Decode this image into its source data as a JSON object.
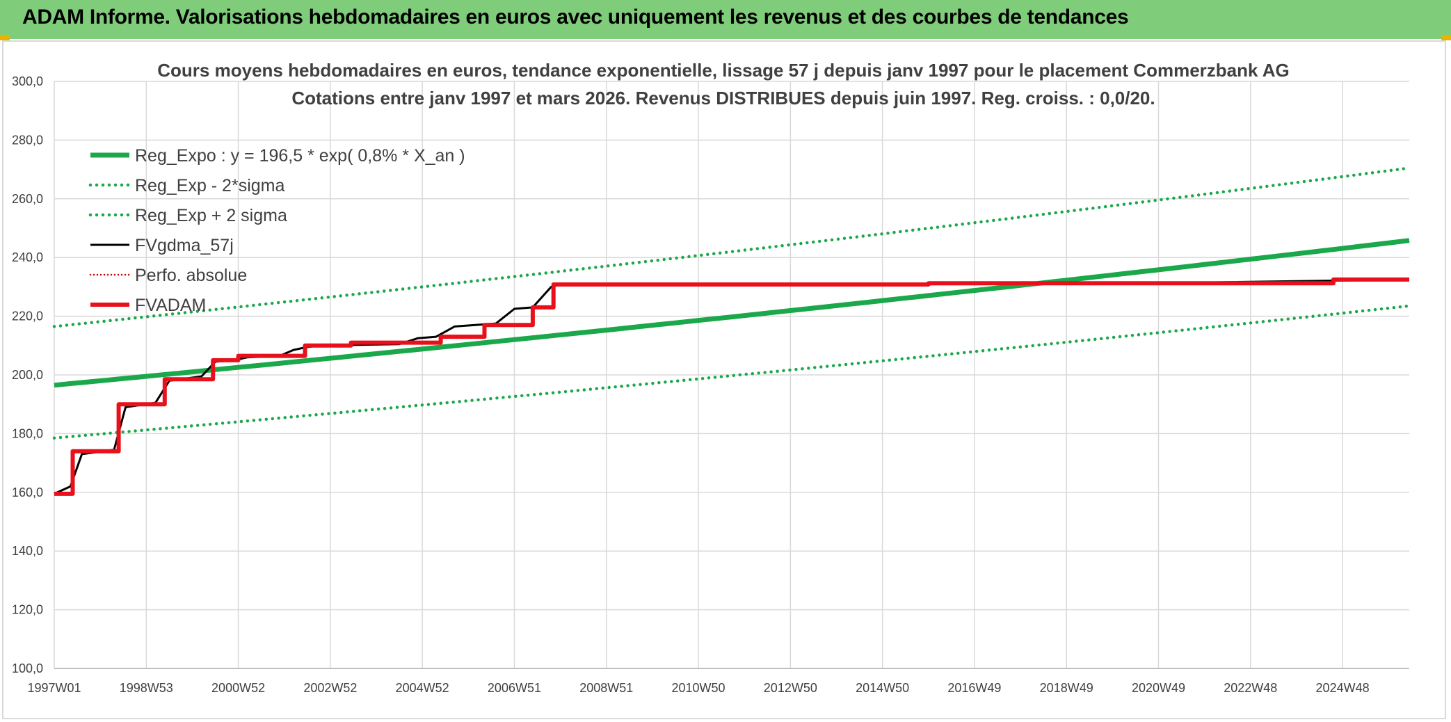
{
  "banner": {
    "title": "ADAM Informe. Valorisations hebdomadaires en euros avec uniquement les revenus et des courbes de tendances"
  },
  "colors": {
    "banner": "#7fcc7a",
    "reg_expo": "#1aa84a",
    "fvgdma": "#000000",
    "fvadam": "#e8101a",
    "perfo": "#c00000",
    "grid": "#d9d9d9"
  },
  "chart_data": {
    "type": "line",
    "title": "Cours moyens hebdomadaires en euros, tendance exponentielle, lissage 57 j depuis janv 1997 pour le placement Commerzbank AG",
    "subtitle": "Cotations entre janv 1997 et mars 2026. Revenus DISTRIBUES depuis juin 1997. Reg. croiss. : 0,0/20.",
    "xlabel": "",
    "ylabel": "",
    "xlim": [
      1997.0,
      2026.45
    ],
    "ylim": [
      100,
      300
    ],
    "yticks": [
      "100,0",
      "120,0",
      "140,0",
      "160,0",
      "180,0",
      "200,0",
      "220,0",
      "240,0",
      "260,0",
      "280,0",
      "300,0"
    ],
    "xticks": [
      {
        "x": 1997.0,
        "label": "1997W01"
      },
      {
        "x": 1999.0,
        "label": "1998W53"
      },
      {
        "x": 2001.0,
        "label": "2000W52"
      },
      {
        "x": 2003.0,
        "label": "2002W52"
      },
      {
        "x": 2005.0,
        "label": "2004W52"
      },
      {
        "x": 2007.0,
        "label": "2006W51"
      },
      {
        "x": 2009.0,
        "label": "2008W51"
      },
      {
        "x": 2011.0,
        "label": "2010W50"
      },
      {
        "x": 2013.0,
        "label": "2012W50"
      },
      {
        "x": 2015.0,
        "label": "2014W50"
      },
      {
        "x": 2017.0,
        "label": "2016W49"
      },
      {
        "x": 2019.0,
        "label": "2018W49"
      },
      {
        "x": 2021.0,
        "label": "2020W49"
      },
      {
        "x": 2023.0,
        "label": "2022W48"
      },
      {
        "x": 2025.0,
        "label": "2024W48"
      }
    ],
    "grid": true,
    "legend_position": "top-left",
    "series": [
      {
        "name": "Reg_Expo : y = 196,5 * exp( 0,8% *  X_an )",
        "style": "solid-thick",
        "color": "#1aa84a",
        "x": [
          1997.0,
          2026.45
        ],
        "y": [
          196.5,
          245.8
        ]
      },
      {
        "name": "Reg_Exp - 2*sigma",
        "style": "dotted",
        "color": "#1aa84a",
        "x": [
          1997.0,
          2026.45
        ],
        "y": [
          178.5,
          223.5
        ]
      },
      {
        "name": "Reg_Exp + 2 sigma",
        "style": "dotted",
        "color": "#1aa84a",
        "x": [
          1997.0,
          2026.45
        ],
        "y": [
          216.5,
          270.5
        ]
      },
      {
        "name": "FVgdma_57j",
        "style": "solid",
        "color": "#000000",
        "x": [
          1997.0,
          1997.35,
          1997.6,
          1998.3,
          1998.55,
          1999.2,
          1999.5,
          2000.2,
          2000.5,
          2000.9,
          2001.2,
          2001.9,
          2002.2,
          2002.5,
          2002.8,
          2004.5,
          2004.9,
          2005.3,
          2005.7,
          2006.6,
          2007.0,
          2007.4,
          2007.8,
          2008.0,
          2010.0,
          2020.0,
          2026.45
        ],
        "y": [
          159.5,
          162.0,
          173.0,
          174.5,
          189.0,
          190.5,
          198.0,
          199.5,
          204.5,
          205.0,
          206.0,
          206.5,
          208.5,
          209.5,
          210.0,
          210.5,
          212.5,
          213.0,
          216.5,
          217.5,
          222.5,
          223.0,
          230.0,
          230.8,
          230.8,
          231.0,
          232.5
        ]
      },
      {
        "name": "Perfo. absolue",
        "style": "dotted",
        "color": "#c00000",
        "x": [],
        "y": []
      },
      {
        "name": "FVADAM",
        "style": "step-thick",
        "color": "#e8101a",
        "x": [
          1997.0,
          1997.4,
          1997.4,
          1998.4,
          1998.4,
          1999.4,
          1999.4,
          2000.45,
          2000.45,
          2001.0,
          2001.0,
          2002.45,
          2002.45,
          2003.45,
          2003.45,
          2005.4,
          2005.4,
          2006.35,
          2006.35,
          2007.4,
          2007.4,
          2007.85,
          2007.85,
          2016.0,
          2016.0,
          2024.8,
          2024.8,
          2026.45
        ],
        "y": [
          159.5,
          159.5,
          174.0,
          174.0,
          190.0,
          190.0,
          198.5,
          198.5,
          205.0,
          205.0,
          206.5,
          206.5,
          210.0,
          210.0,
          211.0,
          211.0,
          213.0,
          213.0,
          217.0,
          217.0,
          223.0,
          223.0,
          230.8,
          230.8,
          231.2,
          231.2,
          232.5,
          232.5
        ]
      }
    ]
  }
}
